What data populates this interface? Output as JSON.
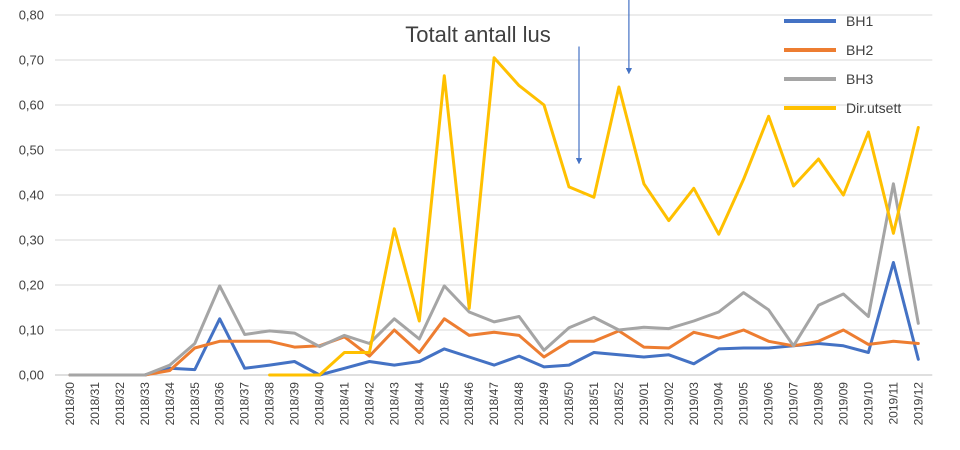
{
  "chart_data": {
    "type": "line",
    "title": "Totalt antall lus",
    "xlabel": "",
    "ylabel": "",
    "ylim": [
      0,
      0.8
    ],
    "yticks": [
      "0,00",
      "0,10",
      "0,20",
      "0,30",
      "0,40",
      "0,50",
      "0,60",
      "0,70",
      "0,80"
    ],
    "grid": true,
    "legend_position": "top-right",
    "categories": [
      "2018/30",
      "2018/31",
      "2018/32",
      "2018/33",
      "2018/34",
      "2018/35",
      "2018/36",
      "2018/37",
      "2018/38",
      "2018/39",
      "2018/40",
      "2018/41",
      "2018/42",
      "2018/43",
      "2018/44",
      "2018/45",
      "2018/46",
      "2018/47",
      "2018/48",
      "2018/49",
      "2018/50",
      "2018/51",
      "2018/52",
      "2019/01",
      "2019/02",
      "2019/03",
      "2019/04",
      "2019/05",
      "2019/06",
      "2019/07",
      "2019/08",
      "2019/09",
      "2019/10",
      "2019/11",
      "2019/12"
    ],
    "series": [
      {
        "name": "BH1",
        "color": "#4472C4",
        "values": [
          0,
          0,
          0,
          0,
          0.015,
          0.012,
          0.125,
          0.015,
          0.022,
          0.03,
          0,
          0.015,
          0.03,
          0.022,
          0.03,
          0.058,
          0.04,
          0.022,
          0.042,
          0.018,
          0.022,
          0.05,
          0.045,
          0.04,
          0.045,
          0.025,
          0.058,
          0.06,
          0.06,
          0.065,
          0.07,
          0.065,
          0.05,
          0.25,
          0.035
        ]
      },
      {
        "name": "BH2",
        "color": "#ED7D31",
        "values": [
          0,
          0,
          0,
          0,
          0.01,
          0.06,
          0.075,
          0.075,
          0.075,
          0.062,
          0.065,
          0.085,
          0.042,
          0.1,
          0.05,
          0.125,
          0.088,
          0.095,
          0.088,
          0.04,
          0.075,
          0.075,
          0.098,
          0.062,
          0.06,
          0.095,
          0.082,
          0.1,
          0.075,
          0.065,
          0.075,
          0.1,
          0.068,
          0.075,
          0.07
        ]
      },
      {
        "name": "BH3",
        "color": "#A5A5A5",
        "values": [
          0,
          0,
          0,
          0,
          0.022,
          0.07,
          0.198,
          0.09,
          0.098,
          0.093,
          0.063,
          0.088,
          0.07,
          0.125,
          0.08,
          0.198,
          0.14,
          0.118,
          0.13,
          0.055,
          0.105,
          0.128,
          0.1,
          0.106,
          0.103,
          0.12,
          0.14,
          0.183,
          0.145,
          0.065,
          0.155,
          0.18,
          0.13,
          0.425,
          0.115
        ]
      },
      {
        "name": "Dir.utsett",
        "color": "#FFC000",
        "values": [
          null,
          null,
          null,
          null,
          null,
          null,
          null,
          null,
          0,
          0,
          0,
          0.05,
          0.05,
          0.325,
          0.12,
          0.665,
          0.148,
          0.705,
          0.643,
          0.6,
          0.418,
          0.395,
          0.64,
          0.425,
          0.343,
          0.415,
          0.313,
          0.435,
          0.575,
          0.42,
          0.48,
          0.4,
          0.54,
          0.315,
          0.55
        ]
      }
    ],
    "annotations": [
      {
        "type": "arrow",
        "color": "#4472C4",
        "category": "2018/50",
        "from_value": 0.73,
        "to_value": 0.47
      },
      {
        "type": "arrow",
        "color": "#4472C4",
        "category": "2018/52",
        "from_value": 0.91,
        "to_value": 0.67
      }
    ]
  }
}
